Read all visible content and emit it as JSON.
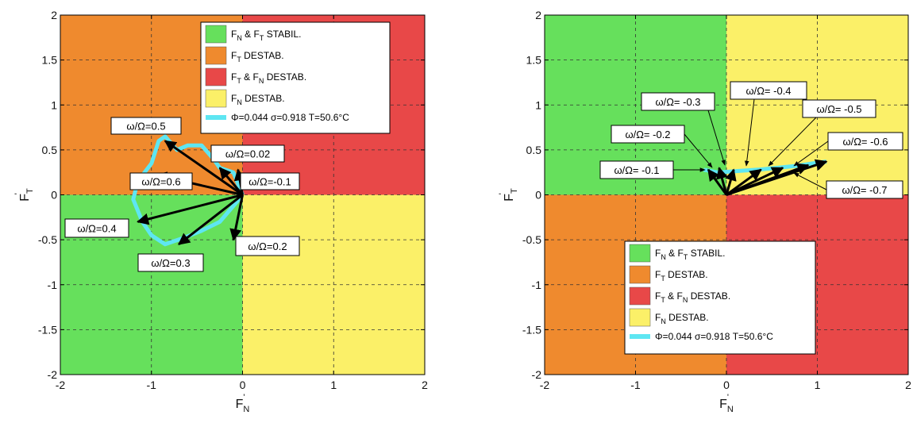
{
  "colors": {
    "stable": "#66e05c",
    "tangential_unstable": "#ef8a2e",
    "both_unstable": "#e84848",
    "normal_unstable": "#fbf068",
    "trajectory": "#5ee6f2",
    "vector": "#000000"
  },
  "legend": {
    "q_stable": {
      "a": "F",
      "a_sub": "N",
      "mid": " & F",
      "b_sub": "T",
      "rest": " STABIL."
    },
    "q_tangential": {
      "a": "F",
      "a_sub": "T",
      "rest": " DESTAB."
    },
    "q_both": {
      "a": "F",
      "a_sub": "T",
      "mid": " & F",
      "b_sub": "N",
      "rest": " DESTAB."
    },
    "q_normal": {
      "a": "F",
      "a_sub": "N",
      "rest": " DESTAB."
    },
    "trajectory_left": "Φ=0.044 σ=0.918 T=50.6°C",
    "trajectory_right": "Φ=0.044 σ=0.918 T=50.6°C"
  },
  "axes": {
    "xlabel": "F",
    "xlabel_sub": "N",
    "xlabel_sup": "'",
    "ylabel": "F",
    "ylabel_sub": "T",
    "ylabel_sup": "'",
    "xticks": [
      "-2",
      "-1",
      "0",
      "1",
      "2"
    ],
    "yticks": [
      "2",
      "1.5",
      "1",
      "0.5",
      "0",
      "-0.5",
      "-1",
      "-1.5",
      "-2"
    ]
  },
  "chart_data": [
    {
      "type": "scatter",
      "xlim": [
        -2,
        2
      ],
      "ylim": [
        -2,
        2
      ],
      "grid": true,
      "legend_position": "top-right",
      "series": [
        {
          "name": "Φ=0.044 σ=0.918 T=50.6°C",
          "x": [
            0.0,
            -0.1,
            -0.25,
            -0.32,
            -0.45,
            -0.6,
            -0.72,
            -0.85,
            -0.92,
            -1.0,
            -1.15,
            -1.2,
            -1.1,
            -1.0,
            -0.85,
            -0.65,
            -0.45,
            -0.25,
            -0.08,
            0.0
          ],
          "y": [
            0.0,
            0.25,
            0.3,
            0.4,
            0.55,
            0.55,
            0.5,
            0.65,
            0.6,
            0.35,
            0.15,
            -0.05,
            -0.3,
            -0.45,
            -0.55,
            -0.48,
            -0.4,
            -0.3,
            -0.1,
            0.0
          ]
        }
      ],
      "vectors": [
        {
          "label": "ω/Ω=0.5",
          "x": -0.85,
          "y": 0.6
        },
        {
          "label": "ω/Ω=0.02",
          "x": -0.25,
          "y": 0.3
        },
        {
          "label": "ω/Ω=-0.1",
          "x": -0.05,
          "y": 0.28
        },
        {
          "label": "ω/Ω=0.6",
          "x": -0.95,
          "y": 0.22
        },
        {
          "label": "ω/Ω=0.4",
          "x": -1.15,
          "y": -0.3
        },
        {
          "label": "ω/Ω=0.3",
          "x": -0.7,
          "y": -0.55
        },
        {
          "label": "ω/Ω=0.2",
          "x": -0.1,
          "y": -0.5
        }
      ]
    },
    {
      "type": "scatter",
      "xlim": [
        -2,
        2
      ],
      "ylim": [
        -2,
        2
      ],
      "grid": true,
      "legend_position": "bottom-center",
      "series": [
        {
          "name": "Φ=0.044 σ=0.918 T=50.6°C",
          "x": [
            -0.25,
            -0.1,
            0.05,
            0.2,
            0.35,
            0.55,
            0.75,
            0.95,
            1.1
          ],
          "y": [
            0.28,
            0.25,
            0.26,
            0.27,
            0.28,
            0.3,
            0.32,
            0.35,
            0.37
          ]
        }
      ],
      "vectors": [
        {
          "label": "ω/Ω= -0.1",
          "x": -0.2,
          "y": 0.28
        },
        {
          "label": "ω/Ω= -0.2",
          "x": -0.08,
          "y": 0.3
        },
        {
          "label": "ω/Ω= -0.3",
          "x": 0.08,
          "y": 0.28
        },
        {
          "label": "ω/Ω= -0.4",
          "x": 0.38,
          "y": 0.28
        },
        {
          "label": "ω/Ω= -0.5",
          "x": 0.62,
          "y": 0.3
        },
        {
          "label": "ω/Ω= -0.6",
          "x": 0.9,
          "y": 0.33
        },
        {
          "label": "ω/Ω= -0.7",
          "x": 1.1,
          "y": 0.37
        }
      ]
    }
  ]
}
